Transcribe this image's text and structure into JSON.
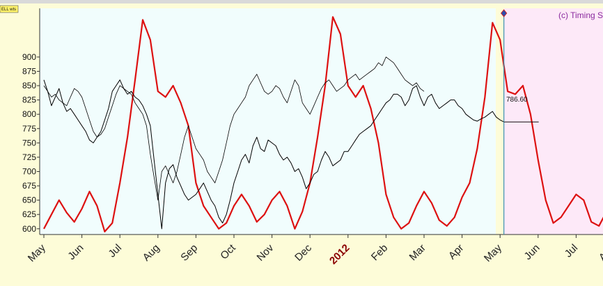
{
  "header_badge": "ELL wts",
  "copyright_text": "(c) Timing S",
  "last_value_label": "786.60",
  "chart_data": {
    "type": "line",
    "ylim": [
      590,
      985
    ],
    "y_ticks": [
      600,
      625,
      650,
      675,
      700,
      725,
      750,
      775,
      800,
      825,
      850,
      875,
      900
    ],
    "x_ticks": [
      {
        "label": "May",
        "x": 0
      },
      {
        "label": "Jun",
        "x": 1
      },
      {
        "label": "Jul",
        "x": 2
      },
      {
        "label": "Aug",
        "x": 3
      },
      {
        "label": "Sep",
        "x": 4
      },
      {
        "label": "Oct",
        "x": 5
      },
      {
        "label": "Nov",
        "x": 6
      },
      {
        "label": "Dec",
        "x": 7
      },
      {
        "label": "2012",
        "x": 8,
        "emphasis": true
      },
      {
        "label": "Feb",
        "x": 9
      },
      {
        "label": "Mar",
        "x": 10
      },
      {
        "label": "Apr",
        "x": 11
      },
      {
        "label": "May",
        "x": 12
      },
      {
        "label": "Jun",
        "x": 13
      },
      {
        "label": "Jul",
        "x": 14
      },
      {
        "label": "Aug",
        "x": 15
      }
    ],
    "today_x": 12.1,
    "colors": {
      "plot_bg": "#f1fdfd",
      "forecast_bg": "#fde9f8",
      "page_bg": "#fdfcd8",
      "forecast_line": "#dd1111",
      "price_line": "#000000",
      "today_line": "#3a8fb0"
    },
    "series": [
      {
        "type": "line",
        "x": [
          0,
          0.2,
          0.4,
          0.6,
          0.8,
          1.0,
          1.2,
          1.4,
          1.6,
          1.8,
          2.0,
          2.2,
          2.4,
          2.6,
          2.8,
          3.0,
          3.2,
          3.4,
          3.6,
          3.8,
          4.0,
          4.2,
          4.4,
          4.6,
          4.8,
          5.0,
          5.2,
          5.4,
          5.6,
          5.8,
          6.0,
          6.2,
          6.4,
          6.6,
          6.8,
          7.0,
          7.2,
          7.4,
          7.6,
          7.8,
          8.0,
          8.2,
          8.4,
          8.6,
          8.8,
          9.0,
          9.2,
          9.4,
          9.6,
          9.8,
          10.0,
          10.2,
          10.4,
          10.6,
          10.8,
          11.0,
          11.2,
          11.4,
          11.6,
          11.8,
          12.0,
          12.2,
          12.4,
          12.6,
          12.8,
          13.0,
          13.2,
          13.4,
          13.6,
          13.8,
          14.0,
          14.2,
          14.4,
          14.6,
          14.8,
          15.0,
          15.2
        ],
        "y": [
          600,
          625,
          650,
          628,
          612,
          635,
          665,
          640,
          595,
          610,
          680,
          760,
          860,
          965,
          930,
          840,
          830,
          850,
          820,
          780,
          680,
          640,
          620,
          600,
          610,
          640,
          660,
          640,
          612,
          625,
          650,
          665,
          640,
          600,
          630,
          680,
          760,
          850,
          970,
          940,
          850,
          830,
          850,
          810,
          750,
          660,
          620,
          600,
          610,
          640,
          665,
          645,
          615,
          605,
          620,
          655,
          680,
          740,
          830,
          960,
          930,
          840,
          835,
          850,
          800,
          720,
          650,
          610,
          620,
          640,
          660,
          650,
          612,
          605,
          630,
          662,
          660
        ]
      },
      {
        "type": "line",
        "x": [
          0,
          0.1,
          0.2,
          0.3,
          0.4,
          0.5,
          0.6,
          0.7,
          0.8,
          0.9,
          1.0,
          1.1,
          1.2,
          1.3,
          1.4,
          1.5,
          1.6,
          1.7,
          1.8,
          1.9,
          2.0,
          2.1,
          2.2,
          2.3,
          2.4,
          2.5,
          2.6,
          2.7,
          2.8,
          2.9,
          3.0,
          3.1,
          3.2,
          3.3,
          3.4,
          3.5,
          3.6,
          3.7,
          3.8,
          3.9,
          4.0,
          4.1,
          4.2,
          4.3,
          4.4,
          4.5,
          4.6,
          4.7,
          4.8,
          4.9,
          5.0,
          5.1,
          5.2,
          5.3,
          5.4,
          5.5,
          5.6,
          5.7,
          5.8,
          5.9,
          6.0,
          6.1,
          6.2,
          6.3,
          6.4,
          6.5,
          6.6,
          6.7,
          6.8,
          6.9,
          7.0,
          7.1,
          7.2,
          7.3,
          7.4,
          7.5,
          7.6,
          7.7,
          7.8,
          7.9,
          8.0,
          8.1,
          8.2,
          8.3,
          8.4,
          8.5,
          8.6,
          8.7,
          8.8,
          8.9,
          9.0,
          9.1,
          9.2,
          9.3,
          9.4,
          9.5,
          9.6,
          9.7,
          9.8,
          9.9,
          10.0,
          10.1,
          10.2,
          10.3,
          10.4,
          10.5,
          10.6,
          10.7,
          10.8,
          10.9,
          11.0,
          11.1,
          11.2,
          11.3,
          11.4,
          11.5,
          11.6,
          11.7,
          11.8,
          11.9,
          12.0,
          12.1
        ],
        "y": [
          860,
          840,
          815,
          830,
          845,
          820,
          805,
          810,
          800,
          790,
          780,
          770,
          755,
          750,
          760,
          770,
          790,
          810,
          840,
          850,
          860,
          845,
          835,
          840,
          830,
          825,
          815,
          800,
          780,
          720,
          660,
          600,
          680,
          705,
          712,
          690,
          675,
          660,
          650,
          655,
          660,
          670,
          680,
          665,
          650,
          640,
          620,
          610,
          625,
          650,
          680,
          700,
          720,
          730,
          715,
          745,
          760,
          740,
          735,
          755,
          750,
          745,
          730,
          720,
          725,
          715,
          700,
          705,
          690,
          670,
          680,
          695,
          700,
          720,
          735,
          725,
          710,
          715,
          720,
          735,
          735,
          745,
          755,
          765,
          770,
          775,
          780,
          790,
          800,
          810,
          820,
          825,
          835,
          835,
          830,
          815,
          825,
          845,
          850,
          830,
          815,
          830,
          835,
          820,
          810,
          815,
          820,
          825,
          825,
          815,
          810,
          800,
          795,
          790,
          788,
          792,
          795,
          800,
          805,
          795,
          790,
          786.6
        ]
      },
      {
        "type": "line",
        "x": [
          0,
          0.1,
          0.2,
          0.3,
          0.4,
          0.5,
          0.6,
          0.7,
          0.8,
          0.9,
          1.0,
          1.1,
          1.2,
          1.3,
          1.4,
          1.5,
          1.6,
          1.7,
          1.8,
          1.9,
          2.0,
          2.1,
          2.2,
          2.3,
          2.4,
          2.5,
          2.6,
          2.7,
          2.8,
          2.9,
          3.0,
          3.1,
          3.2,
          3.3,
          3.4,
          3.5,
          3.6,
          3.7,
          3.8,
          3.9,
          4.0,
          4.1,
          4.2,
          4.3,
          4.4,
          4.5,
          4.6,
          4.7,
          4.8,
          4.9,
          5.0,
          5.1,
          5.2,
          5.3,
          5.4,
          5.5,
          5.6,
          5.7,
          5.8,
          5.9,
          6.0,
          6.1,
          6.2,
          6.3,
          6.4,
          6.5,
          6.6,
          6.7,
          6.8,
          6.9,
          7.0,
          7.1,
          7.2,
          7.3,
          7.4,
          7.5,
          7.6,
          7.7,
          7.8,
          7.9,
          8.0,
          8.1,
          8.2,
          8.3,
          8.4,
          8.5,
          8.6,
          8.7,
          8.8,
          8.9,
          9.0,
          9.1,
          9.2,
          9.3,
          9.4,
          9.5,
          9.6,
          9.7,
          9.8,
          9.9,
          10.0
        ],
        "y": [
          850,
          840,
          830,
          835,
          825,
          820,
          815,
          830,
          845,
          840,
          830,
          810,
          790,
          770,
          760,
          765,
          775,
          795,
          815,
          835,
          850,
          845,
          840,
          835,
          820,
          810,
          800,
          780,
          730,
          690,
          650,
          700,
          710,
          695,
          680,
          700,
          730,
          760,
          780,
          760,
          740,
          730,
          720,
          700,
          690,
          680,
          700,
          720,
          750,
          780,
          800,
          810,
          820,
          830,
          850,
          860,
          870,
          855,
          840,
          835,
          840,
          850,
          845,
          830,
          820,
          840,
          860,
          850,
          820,
          810,
          800,
          815,
          830,
          845,
          855,
          860,
          850,
          840,
          845,
          850,
          860,
          865,
          870,
          860,
          865,
          870,
          875,
          880,
          890,
          885,
          900,
          895,
          890,
          880,
          870,
          860,
          855,
          850,
          855,
          845,
          840
        ]
      }
    ]
  }
}
